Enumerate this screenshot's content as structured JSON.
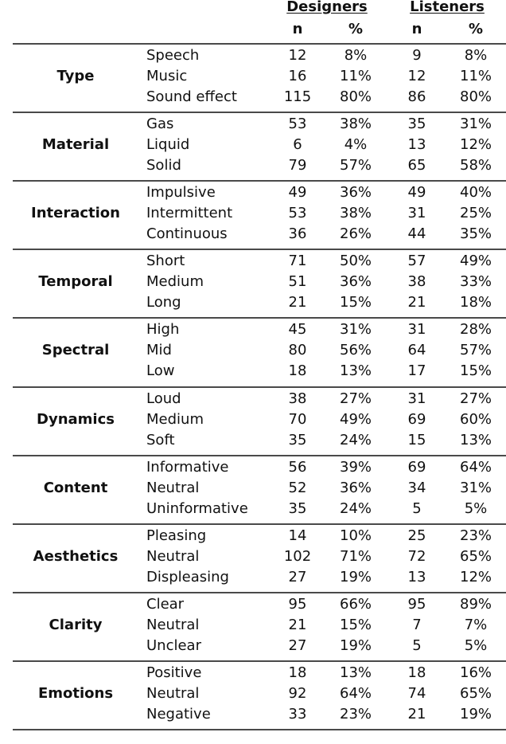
{
  "table": {
    "group_headers": [
      "Designers",
      "Listeners"
    ],
    "sub_headers": [
      "n",
      "%",
      "n",
      "%"
    ],
    "groups": [
      {
        "category": "Type",
        "rows": [
          {
            "label": "Speech",
            "d_n": "12",
            "d_pct": "8%",
            "l_n": "9",
            "l_pct": "8%"
          },
          {
            "label": "Music",
            "d_n": "16",
            "d_pct": "11%",
            "l_n": "12",
            "l_pct": "11%"
          },
          {
            "label": "Sound effect",
            "d_n": "115",
            "d_pct": "80%",
            "l_n": "86",
            "l_pct": "80%"
          }
        ]
      },
      {
        "category": "Material",
        "rows": [
          {
            "label": "Gas",
            "d_n": "53",
            "d_pct": "38%",
            "l_n": "35",
            "l_pct": "31%"
          },
          {
            "label": "Liquid",
            "d_n": "6",
            "d_pct": "4%",
            "l_n": "13",
            "l_pct": "12%"
          },
          {
            "label": "Solid",
            "d_n": "79",
            "d_pct": "57%",
            "l_n": "65",
            "l_pct": "58%"
          }
        ]
      },
      {
        "category": "Interaction",
        "rows": [
          {
            "label": "Impulsive",
            "d_n": "49",
            "d_pct": "36%",
            "l_n": "49",
            "l_pct": "40%"
          },
          {
            "label": "Intermittent",
            "d_n": "53",
            "d_pct": "38%",
            "l_n": "31",
            "l_pct": "25%"
          },
          {
            "label": "Continuous",
            "d_n": "36",
            "d_pct": "26%",
            "l_n": "44",
            "l_pct": "35%"
          }
        ]
      },
      {
        "category": "Temporal",
        "rows": [
          {
            "label": "Short",
            "d_n": "71",
            "d_pct": "50%",
            "l_n": "57",
            "l_pct": "49%"
          },
          {
            "label": "Medium",
            "d_n": "51",
            "d_pct": "36%",
            "l_n": "38",
            "l_pct": "33%"
          },
          {
            "label": "Long",
            "d_n": "21",
            "d_pct": "15%",
            "l_n": "21",
            "l_pct": "18%"
          }
        ]
      },
      {
        "category": "Spectral",
        "rows": [
          {
            "label": "High",
            "d_n": "45",
            "d_pct": "31%",
            "l_n": "31",
            "l_pct": "28%"
          },
          {
            "label": "Mid",
            "d_n": "80",
            "d_pct": "56%",
            "l_n": "64",
            "l_pct": "57%"
          },
          {
            "label": "Low",
            "d_n": "18",
            "d_pct": "13%",
            "l_n": "17",
            "l_pct": "15%"
          }
        ]
      },
      {
        "category": "Dynamics",
        "rows": [
          {
            "label": "Loud",
            "d_n": "38",
            "d_pct": "27%",
            "l_n": "31",
            "l_pct": "27%"
          },
          {
            "label": "Medium",
            "d_n": "70",
            "d_pct": "49%",
            "l_n": "69",
            "l_pct": "60%"
          },
          {
            "label": "Soft",
            "d_n": "35",
            "d_pct": "24%",
            "l_n": "15",
            "l_pct": "13%"
          }
        ]
      },
      {
        "category": "Content",
        "rows": [
          {
            "label": "Informative",
            "d_n": "56",
            "d_pct": "39%",
            "l_n": "69",
            "l_pct": "64%"
          },
          {
            "label": "Neutral",
            "d_n": "52",
            "d_pct": "36%",
            "l_n": "34",
            "l_pct": "31%"
          },
          {
            "label": "Uninformative",
            "d_n": "35",
            "d_pct": "24%",
            "l_n": "5",
            "l_pct": "5%"
          }
        ]
      },
      {
        "category": "Aesthetics",
        "rows": [
          {
            "label": "Pleasing",
            "d_n": "14",
            "d_pct": "10%",
            "l_n": "25",
            "l_pct": "23%"
          },
          {
            "label": "Neutral",
            "d_n": "102",
            "d_pct": "71%",
            "l_n": "72",
            "l_pct": "65%"
          },
          {
            "label": "Displeasing",
            "d_n": "27",
            "d_pct": "19%",
            "l_n": "13",
            "l_pct": "12%"
          }
        ]
      },
      {
        "category": "Clarity",
        "rows": [
          {
            "label": "Clear",
            "d_n": "95",
            "d_pct": "66%",
            "l_n": "95",
            "l_pct": "89%"
          },
          {
            "label": "Neutral",
            "d_n": "21",
            "d_pct": "15%",
            "l_n": "7",
            "l_pct": "7%"
          },
          {
            "label": "Unclear",
            "d_n": "27",
            "d_pct": "19%",
            "l_n": "5",
            "l_pct": "5%"
          }
        ]
      },
      {
        "category": "Emotions",
        "rows": [
          {
            "label": "Positive",
            "d_n": "18",
            "d_pct": "13%",
            "l_n": "18",
            "l_pct": "16%"
          },
          {
            "label": "Neutral",
            "d_n": "92",
            "d_pct": "64%",
            "l_n": "74",
            "l_pct": "65%"
          },
          {
            "label": "Negative",
            "d_n": "33",
            "d_pct": "23%",
            "l_n": "21",
            "l_pct": "19%"
          }
        ]
      }
    ]
  }
}
